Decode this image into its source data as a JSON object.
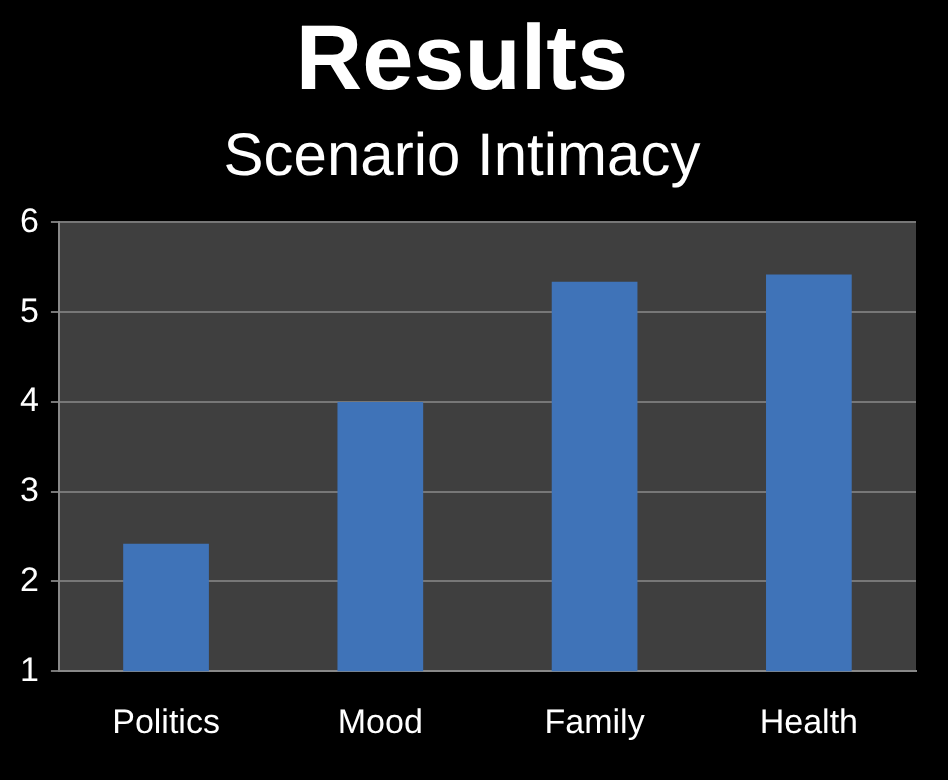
{
  "chart_data": {
    "type": "bar",
    "title": "Results",
    "subtitle": "Scenario Intimacy",
    "categories": [
      "Politics",
      "Mood",
      "Family",
      "Health"
    ],
    "values": [
      2.42,
      4.0,
      5.34,
      5.42
    ],
    "color": "#3f73b8",
    "ylim": [
      1,
      6
    ],
    "yticks": [
      1,
      2,
      3,
      4,
      5,
      6
    ],
    "grid": "y",
    "legend": false
  }
}
